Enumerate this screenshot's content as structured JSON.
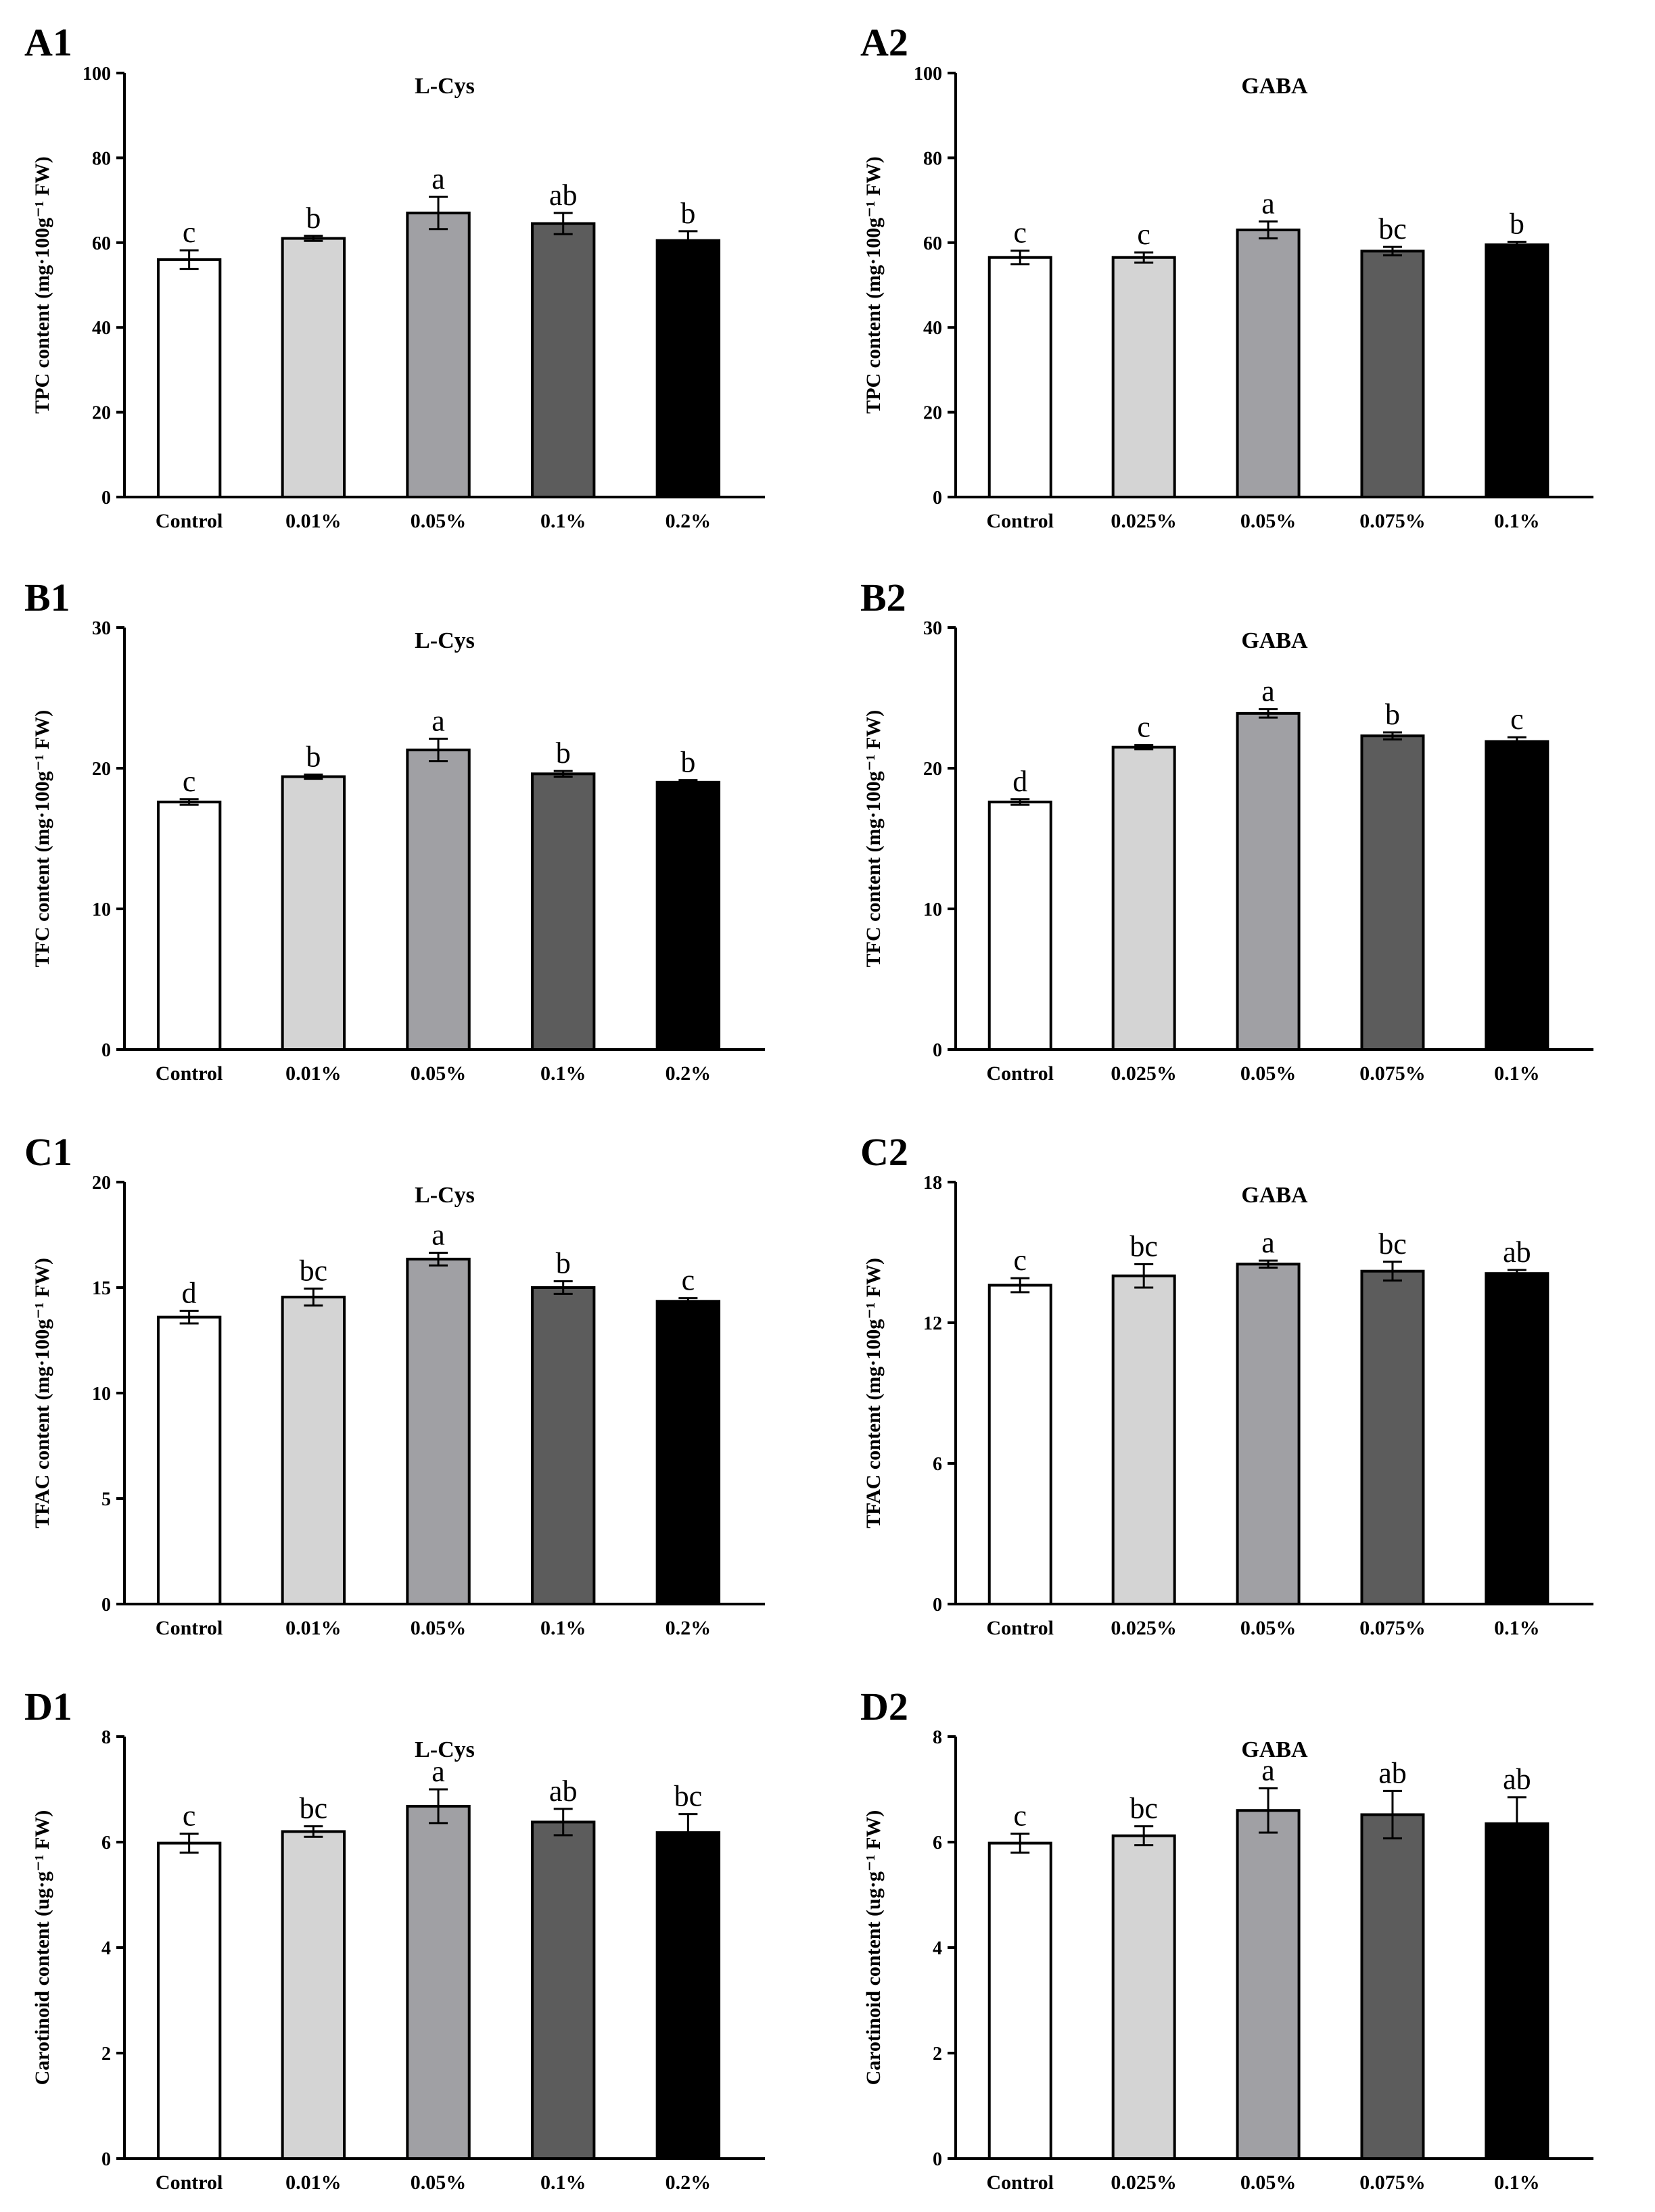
{
  "figure": {
    "description_panels": [
      "A1",
      "A2",
      "B1",
      "B2",
      "C1",
      "C2",
      "D1",
      "D2"
    ]
  },
  "chart_data": [
    {
      "panel": "A1",
      "type": "bar",
      "title": "L-Cys",
      "ylabel": "TPC content (mg·100g⁻¹ FW)",
      "ylim": [
        0,
        100
      ],
      "yticks": [
        0,
        20,
        40,
        60,
        80,
        100
      ],
      "categories": [
        "Control",
        "0.01%",
        "0.05%",
        "0.1%",
        "0.2%"
      ],
      "values": [
        56,
        61,
        67,
        64.5,
        60.5
      ],
      "errors": [
        2.2,
        0.6,
        3.8,
        2.5,
        2.2
      ],
      "letters": [
        "c",
        "b",
        "a",
        "ab",
        "b"
      ],
      "bar_colors": [
        "#ffffff",
        "#d4d4d4",
        "#a0a0a4",
        "#5c5c5c",
        "#000000"
      ]
    },
    {
      "panel": "A2",
      "type": "bar",
      "title": "GABA",
      "ylabel": "TPC content (mg·100g⁻¹ FW)",
      "ylim": [
        0,
        100
      ],
      "yticks": [
        0,
        20,
        40,
        60,
        80,
        100
      ],
      "categories": [
        "Control",
        "0.025%",
        "0.05%",
        "0.075%",
        "0.1%"
      ],
      "values": [
        56.5,
        56.5,
        63,
        58,
        59.5
      ],
      "errors": [
        1.6,
        1.2,
        2.0,
        1.0,
        0.7
      ],
      "letters": [
        "c",
        "c",
        "a",
        "bc",
        "b"
      ],
      "bar_colors": [
        "#ffffff",
        "#d4d4d4",
        "#a0a0a4",
        "#5c5c5c",
        "#000000"
      ]
    },
    {
      "panel": "B1",
      "type": "bar",
      "title": "L-Cys",
      "ylabel": "TFC content (mg·100g⁻¹ FW)",
      "ylim": [
        0,
        30
      ],
      "yticks": [
        0,
        10,
        20,
        30
      ],
      "categories": [
        "Control",
        "0.01%",
        "0.05%",
        "0.1%",
        "0.2%"
      ],
      "values": [
        17.6,
        19.4,
        21.3,
        19.6,
        19.0
      ],
      "errors": [
        0.2,
        0.15,
        0.8,
        0.2,
        0.15
      ],
      "letters": [
        "c",
        "b",
        "a",
        "b",
        "b"
      ],
      "bar_colors": [
        "#ffffff",
        "#d4d4d4",
        "#a0a0a4",
        "#5c5c5c",
        "#000000"
      ]
    },
    {
      "panel": "B2",
      "type": "bar",
      "title": "GABA",
      "ylabel": "TFC content (mg·100g⁻¹ FW)",
      "ylim": [
        0,
        30
      ],
      "yticks": [
        0,
        10,
        20,
        30
      ],
      "categories": [
        "Control",
        "0.025%",
        "0.05%",
        "0.075%",
        "0.1%"
      ],
      "values": [
        17.6,
        21.5,
        23.9,
        22.3,
        21.9
      ],
      "errors": [
        0.2,
        0.15,
        0.3,
        0.25,
        0.3
      ],
      "letters": [
        "d",
        "c",
        "a",
        "b",
        "c"
      ],
      "bar_colors": [
        "#ffffff",
        "#d4d4d4",
        "#a0a0a4",
        "#5c5c5c",
        "#000000"
      ]
    },
    {
      "panel": "C1",
      "type": "bar",
      "title": "L-Cys",
      "ylabel": "TFAC content (mg·100g⁻¹ FW)",
      "ylim": [
        0,
        20
      ],
      "yticks": [
        0,
        5,
        10,
        15,
        20
      ],
      "categories": [
        "Control",
        "0.01%",
        "0.05%",
        "0.1%",
        "0.2%"
      ],
      "values": [
        13.6,
        14.55,
        16.35,
        15.0,
        14.35
      ],
      "errors": [
        0.3,
        0.4,
        0.3,
        0.3,
        0.15
      ],
      "letters": [
        "d",
        "bc",
        "a",
        "b",
        "c"
      ],
      "bar_colors": [
        "#ffffff",
        "#d4d4d4",
        "#a0a0a4",
        "#5c5c5c",
        "#000000"
      ]
    },
    {
      "panel": "C2",
      "type": "bar",
      "title": "GABA",
      "ylabel": "TFAC content (mg·100g⁻¹ FW)",
      "ylim": [
        0,
        18
      ],
      "yticks": [
        0,
        6,
        12,
        18
      ],
      "categories": [
        "Control",
        "0.025%",
        "0.05%",
        "0.075%",
        "0.1%"
      ],
      "values": [
        13.6,
        14.0,
        14.5,
        14.2,
        14.1
      ],
      "errors": [
        0.3,
        0.5,
        0.15,
        0.4,
        0.15
      ],
      "letters": [
        "c",
        "bc",
        "a",
        "bc",
        "ab"
      ],
      "bar_colors": [
        "#ffffff",
        "#d4d4d4",
        "#a0a0a4",
        "#5c5c5c",
        "#000000"
      ]
    },
    {
      "panel": "D1",
      "type": "bar",
      "title": "L-Cys",
      "ylabel": "Carotinoid content (ug·g⁻¹ FW)",
      "ylim": [
        0,
        8
      ],
      "yticks": [
        0,
        2,
        4,
        6,
        8
      ],
      "categories": [
        "Control",
        "0.01%",
        "0.05%",
        "0.1%",
        "0.2%"
      ],
      "values": [
        5.98,
        6.2,
        6.68,
        6.38,
        6.18
      ],
      "errors": [
        0.18,
        0.1,
        0.32,
        0.25,
        0.35
      ],
      "letters": [
        "c",
        "bc",
        "a",
        "ab",
        "bc"
      ],
      "bar_colors": [
        "#ffffff",
        "#d4d4d4",
        "#a0a0a4",
        "#5c5c5c",
        "#000000"
      ]
    },
    {
      "panel": "D2",
      "type": "bar",
      "title": "GABA",
      "ylabel": "Carotinoid content (ug·g⁻¹ FW)",
      "ylim": [
        0,
        8
      ],
      "yticks": [
        0,
        2,
        4,
        6,
        8
      ],
      "categories": [
        "Control",
        "0.025%",
        "0.05%",
        "0.075%",
        "0.1%"
      ],
      "values": [
        5.98,
        6.12,
        6.6,
        6.52,
        6.35
      ],
      "errors": [
        0.18,
        0.18,
        0.42,
        0.45,
        0.5
      ],
      "letters": [
        "c",
        "bc",
        "a",
        "ab",
        "ab"
      ],
      "bar_colors": [
        "#ffffff",
        "#d4d4d4",
        "#a0a0a4",
        "#5c5c5c",
        "#000000"
      ]
    }
  ]
}
